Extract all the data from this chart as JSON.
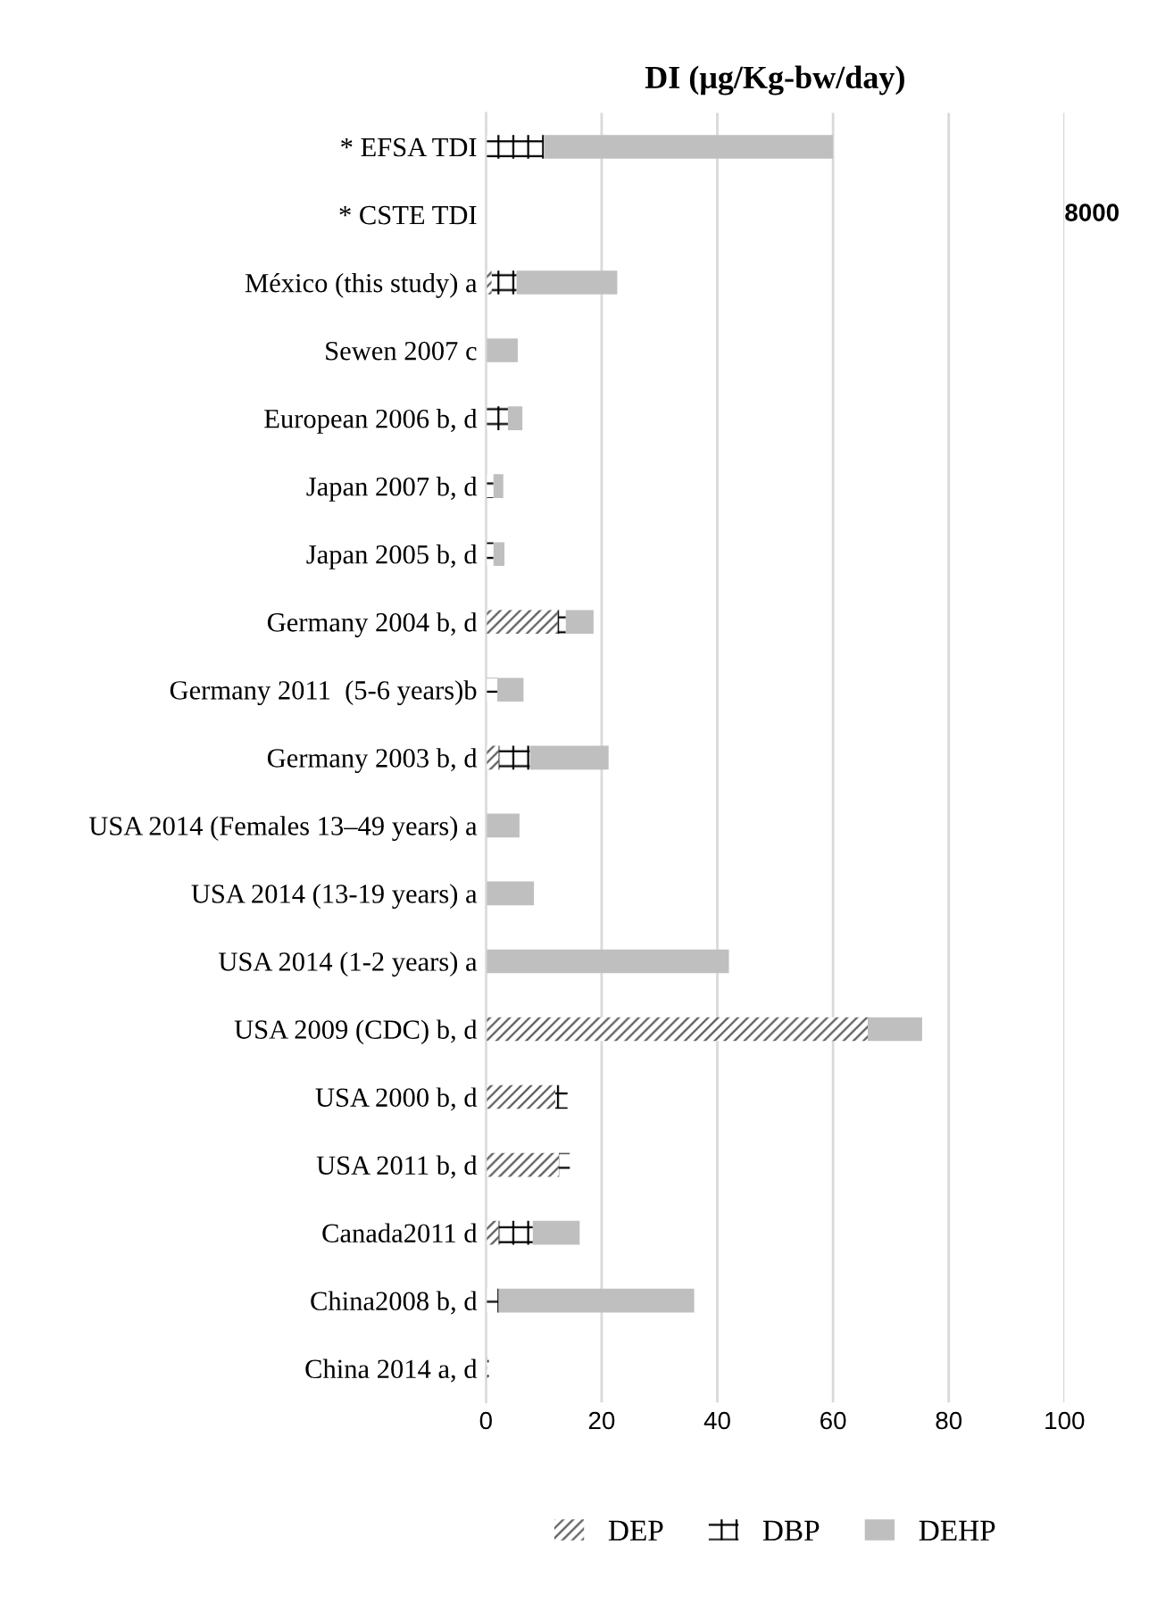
{
  "chart_data": {
    "type": "bar",
    "orientation": "horizontal",
    "stacked": true,
    "title": "DI (μg/Kg-bw/day)",
    "categories": [
      "* EFSA TDI",
      "* CSTE TDI",
      "México (this study) a",
      "Sewen 2007 c",
      "European 2006 b, d",
      "Japan 2007 b, d",
      "Japan 2005 b, d",
      "Germany 2004 b, d",
      "Germany 2011  (5-6 years)b",
      "Germany 2003 b, d",
      "USA 2014 (Females 13–49 years) a",
      "USA 2014 (13-19 years) a",
      "USA 2014 (1-2 years) a",
      "USA 2009 (CDC) b, d",
      "USA 2000 b, d",
      "USA 2011 b, d",
      "Canada2011 d",
      "China2008 b, d",
      "China 2014 a, d"
    ],
    "series": [
      {
        "name": "DEP",
        "color": "#595959",
        "values": [
          0,
          null,
          1,
          0,
          0,
          0,
          0,
          12.4,
          0,
          2.2,
          0,
          0,
          0,
          66,
          12,
          12.6,
          2.2,
          0,
          0.2
        ]
      },
      {
        "name": "DBP",
        "color": "#000000",
        "values": [
          10,
          0,
          4.3,
          0,
          3.8,
          1.3,
          1.3,
          1.4,
          2,
          5.4,
          0,
          0,
          0,
          0,
          2.1,
          1.9,
          5.9,
          2.2,
          0.3
        ]
      },
      {
        "name": "DEHP",
        "color": "#bfbfbf",
        "values": [
          50,
          0,
          17.4,
          5.5,
          2.5,
          1.7,
          1.9,
          4.8,
          4.5,
          13.6,
          5.8,
          8.3,
          42,
          9.4,
          0,
          0,
          8.1,
          33.8,
          0
        ]
      }
    ],
    "annotations": [
      "8000"
    ],
    "xlim": [
      0,
      100
    ],
    "xticks": [
      0,
      20,
      40,
      60,
      80,
      100
    ],
    "grid": "x",
    "legend": "bottom"
  }
}
